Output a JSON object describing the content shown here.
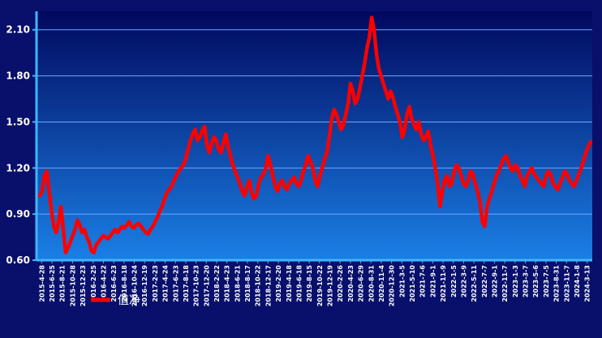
{
  "chart_data": {
    "type": "line",
    "title": "",
    "xlabel": "",
    "ylabel": "",
    "ylim": [
      0.6,
      2.22
    ],
    "yticks": [
      "0.60",
      "0.90",
      "1.20",
      "1.50",
      "1.80",
      "2.10"
    ],
    "grid": "horizontal",
    "legend_position": "bottom-left",
    "colors": {
      "background_top": "#00085e",
      "background_bottom": "#1a7fe6",
      "line": "#ff0000",
      "grid": "#6fa7ff",
      "axis": "#3fb6ff",
      "text": "#ffffff"
    },
    "x_tick_labels": [
      "2015-4-28",
      "2015-6-25",
      "2015-8-21",
      "2015-10-28",
      "2015-12-23",
      "2016-2-25",
      "2016-4-22",
      "2016-6-23",
      "2016-8-18",
      "2016-10-24",
      "2016-12-19",
      "2017-2-23",
      "2017-4-24",
      "2017-6-23",
      "2017-8-18",
      "2017-10-23",
      "2017-12-20",
      "2018-2-22",
      "2018-4-23",
      "2018-6-21",
      "2018-8-17",
      "2018-10-22",
      "2018-12-17",
      "2019-2-20",
      "2019-4-18",
      "2019-6-18",
      "2019-8-15",
      "2019-10-22",
      "2019-12-19",
      "2020-2-26",
      "2020-4-23",
      "2020-6-29",
      "2020-8-31",
      "2020-11-4",
      "2020-12-30",
      "2021-3-5",
      "2021-5-10",
      "2021-7-6",
      "2021-9-1",
      "2021-11-9",
      "2022-1-5",
      "2022-3-9",
      "2022-5-11",
      "2022-7-7",
      "2022-9-1",
      "2022-11-7",
      "2023-1-3",
      "2023-3-7",
      "2023-5-6",
      "2023-7-5",
      "2023-8-31",
      "2023-11-7",
      "2024-1-8",
      "2024-3-13"
    ],
    "series": [
      {
        "name": "值净",
        "values": [
          1.02,
          1.05,
          1.15,
          1.18,
          1.05,
          0.92,
          0.82,
          0.78,
          0.85,
          0.95,
          0.8,
          0.65,
          0.68,
          0.72,
          0.76,
          0.8,
          0.86,
          0.83,
          0.78,
          0.8,
          0.75,
          0.72,
          0.66,
          0.65,
          0.7,
          0.72,
          0.74,
          0.76,
          0.75,
          0.74,
          0.76,
          0.78,
          0.8,
          0.78,
          0.8,
          0.82,
          0.81,
          0.83,
          0.85,
          0.82,
          0.81,
          0.83,
          0.84,
          0.82,
          0.8,
          0.78,
          0.77,
          0.8,
          0.82,
          0.85,
          0.88,
          0.92,
          0.95,
          1.0,
          1.04,
          1.06,
          1.08,
          1.12,
          1.15,
          1.18,
          1.2,
          1.22,
          1.26,
          1.32,
          1.38,
          1.42,
          1.45,
          1.38,
          1.4,
          1.44,
          1.47,
          1.35,
          1.3,
          1.36,
          1.4,
          1.38,
          1.32,
          1.3,
          1.36,
          1.42,
          1.34,
          1.28,
          1.22,
          1.18,
          1.14,
          1.1,
          1.05,
          1.02,
          1.08,
          1.12,
          1.04,
          1.0,
          1.02,
          1.1,
          1.14,
          1.16,
          1.2,
          1.28,
          1.22,
          1.15,
          1.08,
          1.05,
          1.1,
          1.12,
          1.08,
          1.06,
          1.1,
          1.12,
          1.14,
          1.1,
          1.08,
          1.12,
          1.18,
          1.22,
          1.28,
          1.24,
          1.2,
          1.12,
          1.08,
          1.15,
          1.2,
          1.26,
          1.3,
          1.4,
          1.52,
          1.58,
          1.55,
          1.5,
          1.45,
          1.48,
          1.55,
          1.62,
          1.75,
          1.7,
          1.62,
          1.65,
          1.72,
          1.8,
          1.88,
          1.98,
          2.05,
          2.18,
          2.1,
          1.95,
          1.85,
          1.8,
          1.75,
          1.7,
          1.65,
          1.7,
          1.66,
          1.6,
          1.55,
          1.5,
          1.4,
          1.45,
          1.55,
          1.6,
          1.52,
          1.48,
          1.45,
          1.5,
          1.42,
          1.38,
          1.4,
          1.44,
          1.35,
          1.28,
          1.2,
          1.1,
          0.95,
          1.05,
          1.12,
          1.15,
          1.08,
          1.1,
          1.18,
          1.22,
          1.2,
          1.15,
          1.1,
          1.08,
          1.12,
          1.18,
          1.16,
          1.1,
          1.05,
          0.98,
          0.85,
          0.82,
          0.95,
          1.0,
          1.05,
          1.1,
          1.15,
          1.18,
          1.22,
          1.26,
          1.28,
          1.24,
          1.2,
          1.18,
          1.22,
          1.2,
          1.15,
          1.12,
          1.08,
          1.15,
          1.18,
          1.2,
          1.16,
          1.14,
          1.12,
          1.1,
          1.08,
          1.15,
          1.18,
          1.16,
          1.1,
          1.08,
          1.06,
          1.1,
          1.14,
          1.18,
          1.16,
          1.12,
          1.1,
          1.08,
          1.12,
          1.16,
          1.2,
          1.25,
          1.3,
          1.34,
          1.37
        ]
      }
    ]
  },
  "legend": {
    "label": "值净"
  }
}
